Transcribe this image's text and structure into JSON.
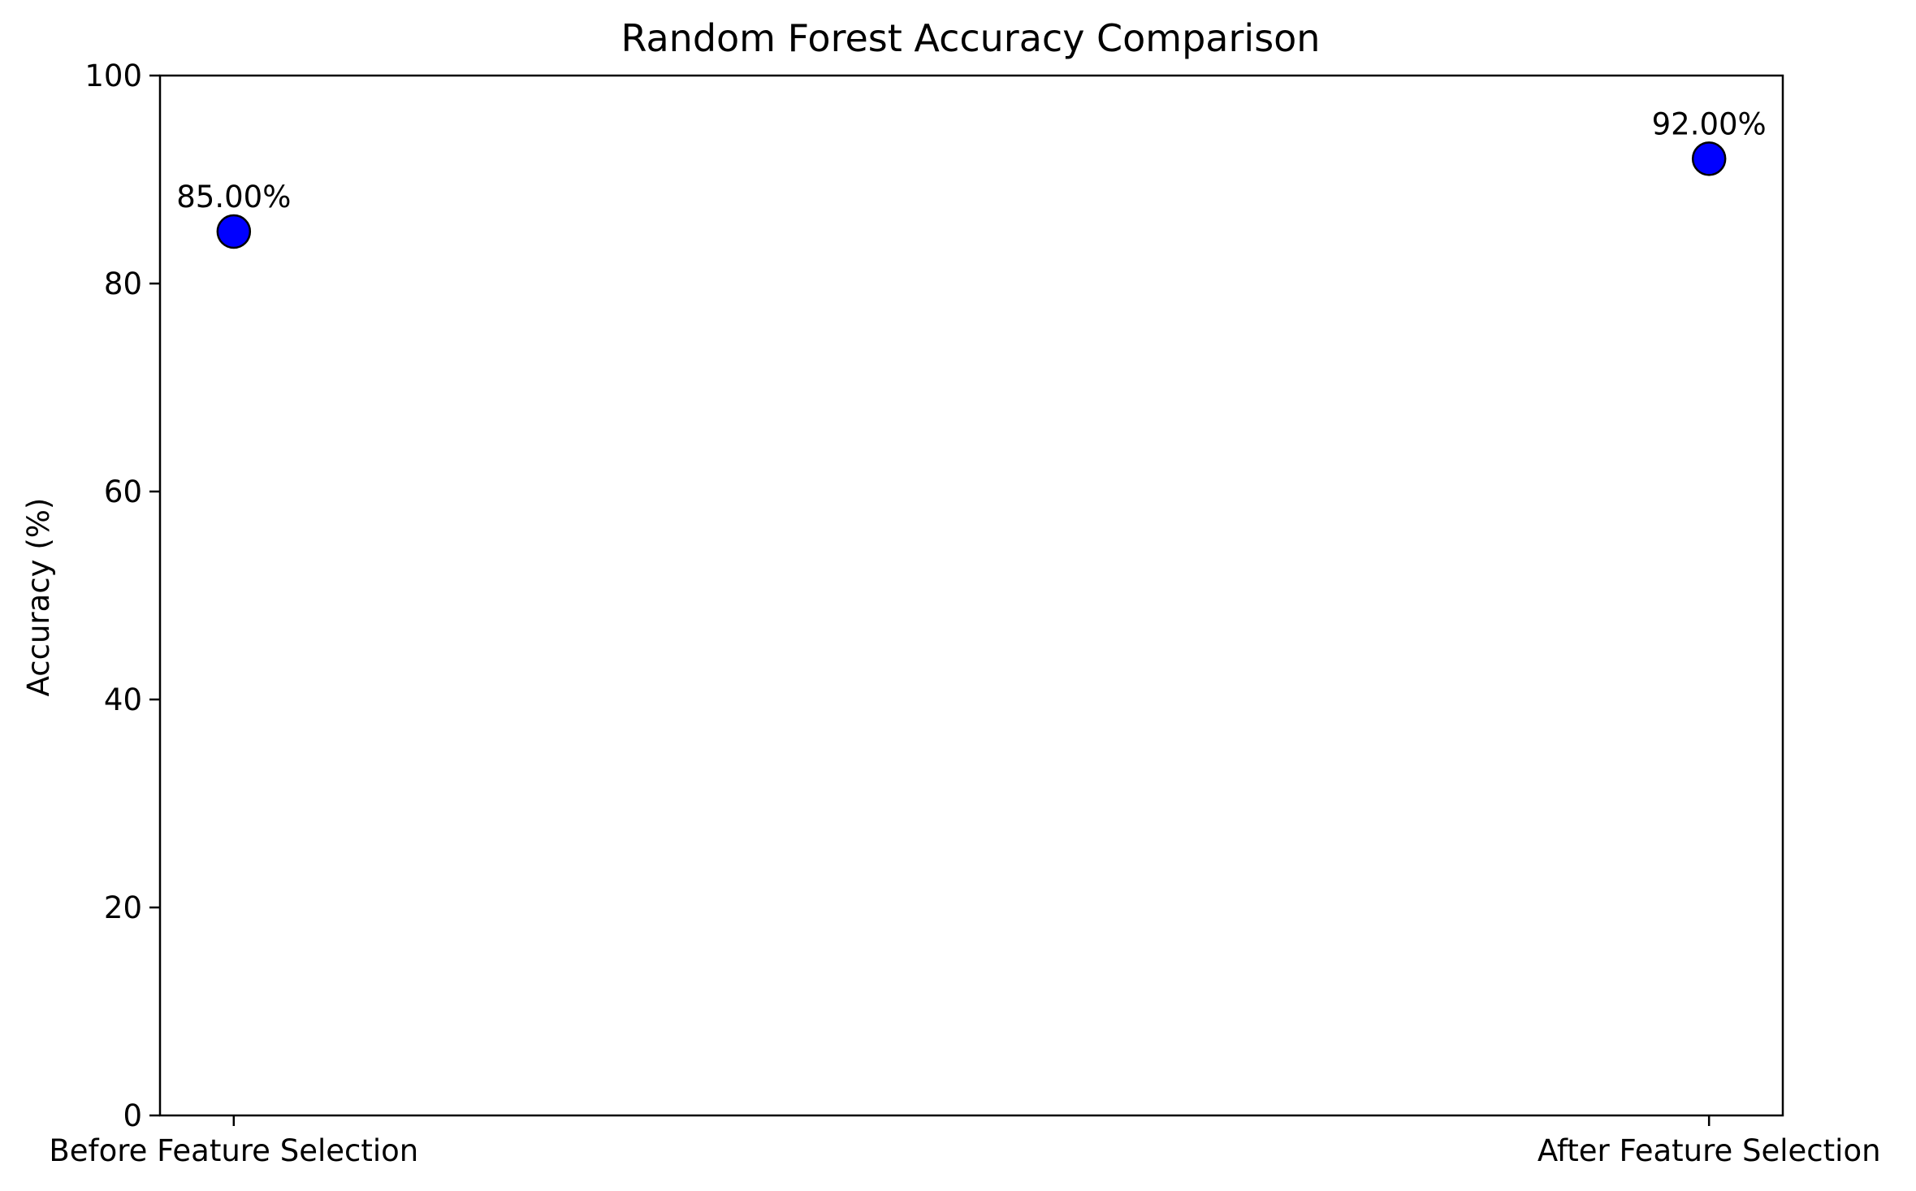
{
  "chart_data": {
    "type": "scatter",
    "title": "Random Forest Accuracy Comparison",
    "xlabel": "",
    "ylabel": "Accuracy (%)",
    "categories": [
      "Before Feature Selection",
      "After Feature Selection"
    ],
    "values": [
      85.0,
      92.0
    ],
    "data_labels": [
      "85.00%",
      "92.00%"
    ],
    "ylim": [
      0,
      100
    ],
    "yticks": [
      0,
      20,
      40,
      60,
      80,
      100
    ],
    "grid": false,
    "legend": "none",
    "marker_color": "#0000ff",
    "marker_edge_color": "#000000"
  }
}
